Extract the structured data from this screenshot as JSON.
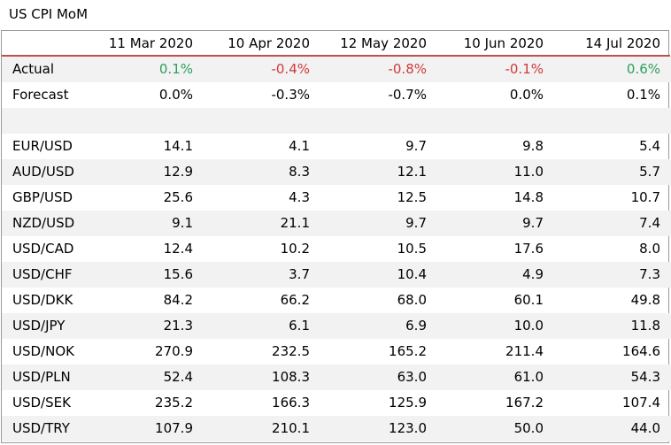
{
  "title": "US CPI MoM",
  "colors": {
    "positive": "#2e9e5b",
    "negative": "#d03a3a",
    "header_rule": "#c0504d",
    "band": "#f2f2f2"
  },
  "columns": [
    "11 Mar 2020",
    "10 Apr 2020",
    "12 May 2020",
    "10 Jun 2020",
    "14 Jul 2020"
  ],
  "actual": {
    "label": "Actual",
    "values": [
      "0.1%",
      "-0.4%",
      "-0.8%",
      "-0.1%",
      "0.6%"
    ],
    "signs": [
      "positive",
      "negative",
      "negative",
      "negative",
      "positive"
    ]
  },
  "forecast": {
    "label": "Forecast",
    "values": [
      "0.0%",
      "-0.3%",
      "-0.7%",
      "0.0%",
      "0.1%"
    ]
  },
  "pairs": [
    {
      "name": "EUR/USD",
      "values": [
        "14.1",
        "4.1",
        "9.7",
        "9.8",
        "5.4"
      ]
    },
    {
      "name": "AUD/USD",
      "values": [
        "12.9",
        "8.3",
        "12.1",
        "11.0",
        "5.7"
      ]
    },
    {
      "name": "GBP/USD",
      "values": [
        "25.6",
        "4.3",
        "12.5",
        "14.8",
        "10.7"
      ]
    },
    {
      "name": "NZD/USD",
      "values": [
        "9.1",
        "21.1",
        "9.7",
        "9.7",
        "7.4"
      ]
    },
    {
      "name": "USD/CAD",
      "values": [
        "12.4",
        "10.2",
        "10.5",
        "17.6",
        "8.0"
      ]
    },
    {
      "name": "USD/CHF",
      "values": [
        "15.6",
        "3.7",
        "10.4",
        "4.9",
        "7.3"
      ]
    },
    {
      "name": "USD/DKK",
      "values": [
        "84.2",
        "66.2",
        "68.0",
        "60.1",
        "49.8"
      ]
    },
    {
      "name": "USD/JPY",
      "values": [
        "21.3",
        "6.1",
        "6.9",
        "10.0",
        "11.8"
      ]
    },
    {
      "name": "USD/NOK",
      "values": [
        "270.9",
        "232.5",
        "165.2",
        "211.4",
        "164.6"
      ]
    },
    {
      "name": "USD/PLN",
      "values": [
        "52.4",
        "108.3",
        "63.0",
        "61.0",
        "54.3"
      ]
    },
    {
      "name": "USD/SEK",
      "values": [
        "235.2",
        "166.3",
        "125.9",
        "167.2",
        "107.4"
      ]
    },
    {
      "name": "USD/TRY",
      "values": [
        "107.9",
        "210.1",
        "123.0",
        "50.0",
        "44.0"
      ]
    }
  ]
}
